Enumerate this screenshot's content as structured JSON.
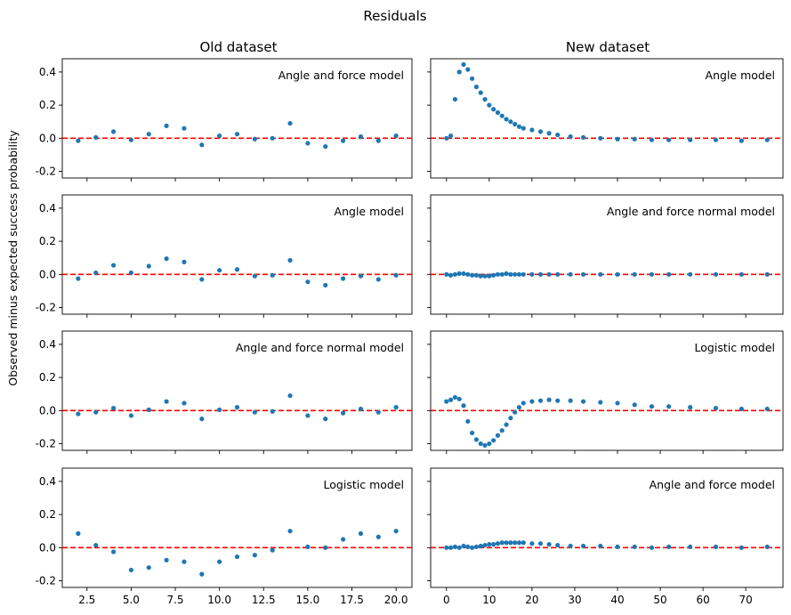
{
  "figure": {
    "title": "Residuals",
    "ylabel": "Observed minus expected success probability",
    "column_titles": [
      "Old dataset",
      "New dataset"
    ],
    "point_color": "#1f77b4",
    "zero_line_color": "#ff0000"
  },
  "chart_data": [
    {
      "type": "scatter",
      "column": 0,
      "row": 0,
      "annotation": "Angle and force model",
      "xlim": [
        1.1,
        20.9
      ],
      "ylim": [
        -0.24,
        0.48
      ],
      "xticks": [
        2.5,
        5.0,
        7.5,
        10.0,
        12.5,
        15.0,
        17.5,
        20.0
      ],
      "yticks": [
        -0.2,
        0.0,
        0.2,
        0.4
      ],
      "x": [
        2,
        3,
        4,
        5,
        6,
        7,
        8,
        9,
        10,
        11,
        12,
        13,
        14,
        15,
        16,
        17,
        18,
        19,
        20
      ],
      "y": [
        -0.015,
        0.005,
        0.04,
        -0.01,
        0.025,
        0.075,
        0.06,
        -0.04,
        0.015,
        0.025,
        -0.005,
        0.0,
        0.09,
        -0.03,
        -0.05,
        -0.015,
        0.01,
        -0.015,
        0.015
      ]
    },
    {
      "type": "scatter",
      "column": 0,
      "row": 1,
      "annotation": "Angle model",
      "xlim": [
        1.1,
        20.9
      ],
      "ylim": [
        -0.24,
        0.48
      ],
      "xticks": [
        2.5,
        5.0,
        7.5,
        10.0,
        12.5,
        15.0,
        17.5,
        20.0
      ],
      "yticks": [
        -0.2,
        0.0,
        0.2,
        0.4
      ],
      "x": [
        2,
        3,
        4,
        5,
        6,
        7,
        8,
        9,
        10,
        11,
        12,
        13,
        14,
        15,
        16,
        17,
        18,
        19,
        20
      ],
      "y": [
        -0.025,
        0.01,
        0.055,
        0.01,
        0.05,
        0.095,
        0.075,
        -0.03,
        0.025,
        0.03,
        -0.01,
        -0.005,
        0.085,
        -0.045,
        -0.065,
        -0.025,
        -0.01,
        -0.03,
        -0.005
      ]
    },
    {
      "type": "scatter",
      "column": 0,
      "row": 2,
      "annotation": "Angle and force normal model",
      "xlim": [
        1.1,
        20.9
      ],
      "ylim": [
        -0.24,
        0.48
      ],
      "xticks": [
        2.5,
        5.0,
        7.5,
        10.0,
        12.5,
        15.0,
        17.5,
        20.0
      ],
      "yticks": [
        -0.2,
        0.0,
        0.2,
        0.4
      ],
      "x": [
        2,
        3,
        4,
        5,
        6,
        7,
        8,
        9,
        10,
        11,
        12,
        13,
        14,
        15,
        16,
        17,
        18,
        19,
        20
      ],
      "y": [
        -0.02,
        -0.01,
        0.015,
        -0.03,
        0.005,
        0.055,
        0.045,
        -0.05,
        0.005,
        0.02,
        -0.01,
        -0.005,
        0.09,
        -0.03,
        -0.05,
        -0.015,
        0.01,
        -0.01,
        0.02
      ]
    },
    {
      "type": "scatter",
      "column": 0,
      "row": 3,
      "annotation": "Logistic model",
      "xlim": [
        1.1,
        20.9
      ],
      "ylim": [
        -0.24,
        0.48
      ],
      "xticks": [
        2.5,
        5.0,
        7.5,
        10.0,
        12.5,
        15.0,
        17.5,
        20.0
      ],
      "yticks": [
        -0.2,
        0.0,
        0.2,
        0.4
      ],
      "x": [
        2,
        3,
        4,
        5,
        6,
        7,
        8,
        9,
        10,
        11,
        12,
        13,
        14,
        15,
        16,
        17,
        18,
        19,
        20
      ],
      "y": [
        0.085,
        0.015,
        -0.025,
        -0.135,
        -0.12,
        -0.075,
        -0.085,
        -0.16,
        -0.085,
        -0.055,
        -0.045,
        -0.015,
        0.1,
        0.005,
        0.0,
        0.05,
        0.085,
        0.065,
        0.1
      ]
    },
    {
      "type": "scatter",
      "column": 1,
      "row": 0,
      "annotation": "Angle model",
      "xlim": [
        -3.7,
        78.7
      ],
      "ylim": [
        -0.24,
        0.48
      ],
      "xticks": [
        0,
        10,
        20,
        30,
        40,
        50,
        60,
        70
      ],
      "yticks": [
        -0.2,
        0.0,
        0.2,
        0.4
      ],
      "x": [
        0,
        1,
        2,
        3,
        4,
        5,
        6,
        7,
        8,
        9,
        10,
        11,
        12,
        13,
        14,
        15,
        16,
        17,
        18,
        20,
        22,
        24,
        26,
        29,
        32,
        36,
        40,
        44,
        48,
        52,
        57,
        63,
        69,
        75
      ],
      "y": [
        0.0,
        0.015,
        0.235,
        0.4,
        0.445,
        0.415,
        0.36,
        0.31,
        0.275,
        0.235,
        0.2,
        0.175,
        0.155,
        0.135,
        0.115,
        0.1,
        0.085,
        0.07,
        0.06,
        0.05,
        0.04,
        0.03,
        0.02,
        0.01,
        0.005,
        0.0,
        -0.005,
        -0.005,
        -0.01,
        -0.01,
        -0.01,
        -0.01,
        -0.015,
        -0.01
      ]
    },
    {
      "type": "scatter",
      "column": 1,
      "row": 1,
      "annotation": "Angle and force normal model",
      "xlim": [
        -3.7,
        78.7
      ],
      "ylim": [
        -0.24,
        0.48
      ],
      "xticks": [
        0,
        10,
        20,
        30,
        40,
        50,
        60,
        70
      ],
      "yticks": [
        -0.2,
        0.0,
        0.2,
        0.4
      ],
      "x": [
        0,
        1,
        2,
        3,
        4,
        5,
        6,
        7,
        8,
        9,
        10,
        11,
        12,
        13,
        14,
        15,
        16,
        17,
        18,
        20,
        22,
        24,
        26,
        29,
        32,
        36,
        40,
        44,
        48,
        52,
        57,
        63,
        69,
        75
      ],
      "y": [
        0.0,
        -0.005,
        0.0,
        0.005,
        0.005,
        0.0,
        -0.005,
        -0.005,
        -0.01,
        -0.01,
        -0.01,
        -0.005,
        0.0,
        0.0,
        0.005,
        0.0,
        0.0,
        0.0,
        0.0,
        0.0,
        0.0,
        0.0,
        0.0,
        0.0,
        0.0,
        0.0,
        0.0,
        0.0,
        0.0,
        0.0,
        0.0,
        0.0,
        0.0,
        0.0
      ]
    },
    {
      "type": "scatter",
      "column": 1,
      "row": 2,
      "annotation": "Logistic model",
      "xlim": [
        -3.7,
        78.7
      ],
      "ylim": [
        -0.24,
        0.48
      ],
      "xticks": [
        0,
        10,
        20,
        30,
        40,
        50,
        60,
        70
      ],
      "yticks": [
        -0.2,
        0.0,
        0.2,
        0.4
      ],
      "x": [
        0,
        1,
        2,
        3,
        4,
        5,
        6,
        7,
        8,
        9,
        10,
        11,
        12,
        13,
        14,
        15,
        16,
        17,
        18,
        20,
        22,
        24,
        26,
        29,
        32,
        36,
        40,
        44,
        48,
        52,
        57,
        63,
        69,
        75
      ],
      "y": [
        0.055,
        0.065,
        0.08,
        0.07,
        0.03,
        -0.065,
        -0.135,
        -0.175,
        -0.2,
        -0.21,
        -0.2,
        -0.18,
        -0.15,
        -0.12,
        -0.085,
        -0.045,
        -0.01,
        0.02,
        0.045,
        0.055,
        0.06,
        0.065,
        0.06,
        0.06,
        0.055,
        0.05,
        0.045,
        0.035,
        0.025,
        0.025,
        0.02,
        0.015,
        0.01,
        0.01
      ]
    },
    {
      "type": "scatter",
      "column": 1,
      "row": 3,
      "annotation": "Angle and force model",
      "xlim": [
        -3.7,
        78.7
      ],
      "ylim": [
        -0.24,
        0.48
      ],
      "xticks": [
        0,
        10,
        20,
        30,
        40,
        50,
        60,
        70
      ],
      "yticks": [
        -0.2,
        0.0,
        0.2,
        0.4
      ],
      "x": [
        0,
        1,
        2,
        3,
        4,
        5,
        6,
        7,
        8,
        9,
        10,
        11,
        12,
        13,
        14,
        15,
        16,
        17,
        18,
        20,
        22,
        24,
        26,
        29,
        32,
        36,
        40,
        44,
        48,
        52,
        57,
        63,
        69,
        75
      ],
      "y": [
        0.0,
        0.0,
        0.005,
        0.0,
        0.01,
        0.005,
        0.0,
        0.005,
        0.01,
        0.015,
        0.02,
        0.02,
        0.025,
        0.03,
        0.03,
        0.03,
        0.03,
        0.03,
        0.03,
        0.025,
        0.025,
        0.02,
        0.015,
        0.01,
        0.01,
        0.01,
        0.005,
        0.005,
        0.0,
        0.005,
        0.005,
        0.005,
        0.0,
        0.005
      ]
    }
  ]
}
